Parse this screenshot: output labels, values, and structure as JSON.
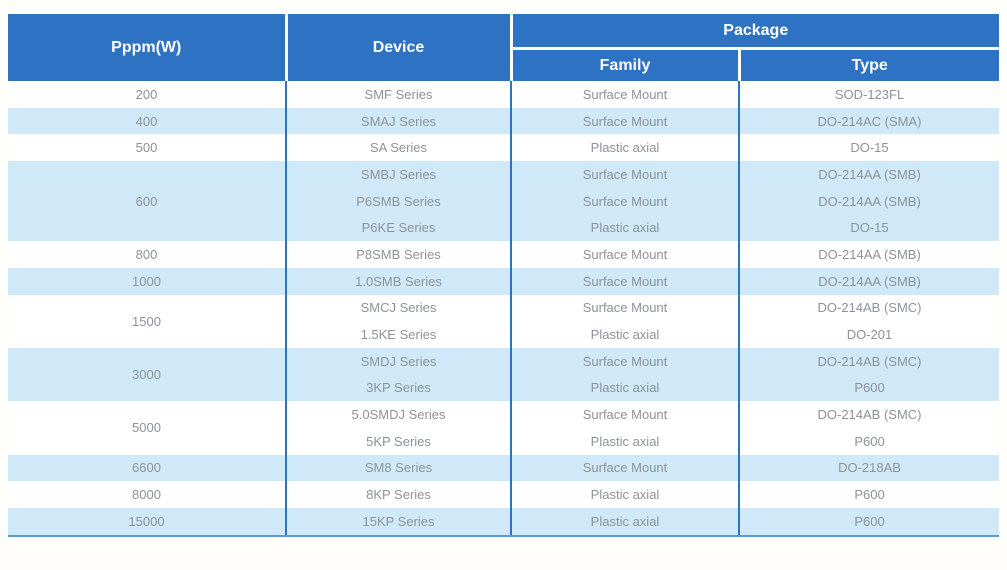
{
  "table": {
    "header": {
      "power": "Pppm(W)",
      "device": "Device",
      "package": "Package",
      "family": "Family",
      "type": "Type"
    },
    "colors": {
      "header_bg": "#2e72c4",
      "header_text": "#ffffff",
      "shaded_row_bg": "#cfe9f8",
      "plain_row_bg": "#ffffff",
      "cell_text": "#8d9399",
      "column_divider": "#2e72c4",
      "bottom_edge": "#5b9bd5"
    },
    "groups": [
      {
        "power": "200",
        "rows": [
          {
            "device": "SMF Series",
            "family": "Surface Mount",
            "type": "SOD-123FL"
          }
        ]
      },
      {
        "power": "400",
        "rows": [
          {
            "device": "SMAJ Series",
            "family": "Surface Mount",
            "type": "DO-214AC (SMA)"
          }
        ]
      },
      {
        "power": "500",
        "rows": [
          {
            "device": "SA Series",
            "family": "Plastic axial",
            "type": "DO-15"
          }
        ]
      },
      {
        "power": "600",
        "rows": [
          {
            "device": "SMBJ Series",
            "family": "Surface Mount",
            "type": "DO-214AA (SMB)"
          },
          {
            "device": "P6SMB Series",
            "family": "Surface Mount",
            "type": "DO-214AA (SMB)"
          },
          {
            "device": "P6KE Series",
            "family": "Plastic axial",
            "type": "DO-15"
          }
        ]
      },
      {
        "power": "800",
        "rows": [
          {
            "device": "P8SMB Series",
            "family": "Surface Mount",
            "type": "DO-214AA (SMB)"
          }
        ]
      },
      {
        "power": "1000",
        "rows": [
          {
            "device": "1.0SMB Series",
            "family": "Surface Mount",
            "type": "DO-214AA (SMB)"
          }
        ]
      },
      {
        "power": "1500",
        "rows": [
          {
            "device": "SMCJ Series",
            "family": "Surface Mount",
            "type": "DO-214AB (SMC)"
          },
          {
            "device": "1.5KE Series",
            "family": "Plastic axial",
            "type": "DO-201"
          }
        ]
      },
      {
        "power": "3000",
        "rows": [
          {
            "device": "SMDJ Series",
            "family": "Surface Mount",
            "type": "DO-214AB (SMC)"
          },
          {
            "device": "3KP Series",
            "family": "Plastic axial",
            "type": "P600"
          }
        ]
      },
      {
        "power": "5000",
        "rows": [
          {
            "device": "5.0SMDJ Series",
            "family": "Surface Mount",
            "type": "DO-214AB (SMC)"
          },
          {
            "device": "5KP Series",
            "family": "Plastic axial",
            "type": "P600"
          }
        ]
      },
      {
        "power": "6600",
        "rows": [
          {
            "device": "SM8 Series",
            "family": "Surface Mount",
            "type": "DO-218AB"
          }
        ]
      },
      {
        "power": "8000",
        "rows": [
          {
            "device": "8KP Series",
            "family": "Plastic axial",
            "type": "P600"
          }
        ]
      },
      {
        "power": "15000",
        "rows": [
          {
            "device": "15KP Series",
            "family": "Plastic axial",
            "type": "P600"
          }
        ]
      }
    ]
  }
}
